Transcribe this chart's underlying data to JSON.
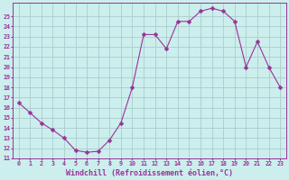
{
  "x": [
    0,
    1,
    2,
    3,
    4,
    5,
    6,
    7,
    8,
    9,
    10,
    11,
    12,
    13,
    14,
    15,
    16,
    17,
    18,
    19,
    20,
    21,
    22,
    23
  ],
  "y": [
    16.5,
    15.5,
    14.5,
    13.8,
    13.0,
    11.8,
    11.6,
    11.7,
    12.8,
    14.5,
    18.0,
    23.2,
    23.2,
    21.8,
    24.5,
    24.5,
    25.5,
    25.8,
    25.5,
    24.5,
    20.0,
    22.5,
    20.0,
    18.0
  ],
  "line_color": "#993399",
  "marker": "D",
  "marker_size": 2.5,
  "bg_color": "#cceeed",
  "grid_color": "#aacccc",
  "xlabel": "Windchill (Refroidissement éolien,°C)",
  "ylabel": "",
  "title": "",
  "ylim": [
    11,
    26
  ],
  "xlim": [
    -0.5,
    23.5
  ],
  "yticks": [
    11,
    12,
    13,
    14,
    15,
    16,
    17,
    18,
    19,
    20,
    21,
    22,
    23,
    24,
    25
  ],
  "xticks": [
    0,
    1,
    2,
    3,
    4,
    5,
    6,
    7,
    8,
    9,
    10,
    11,
    12,
    13,
    14,
    15,
    16,
    17,
    18,
    19,
    20,
    21,
    22,
    23
  ],
  "tick_color": "#993399",
  "tick_fontsize": 4.8,
  "xlabel_fontsize": 6.0,
  "label_color": "#993399",
  "spine_color": "#993399"
}
